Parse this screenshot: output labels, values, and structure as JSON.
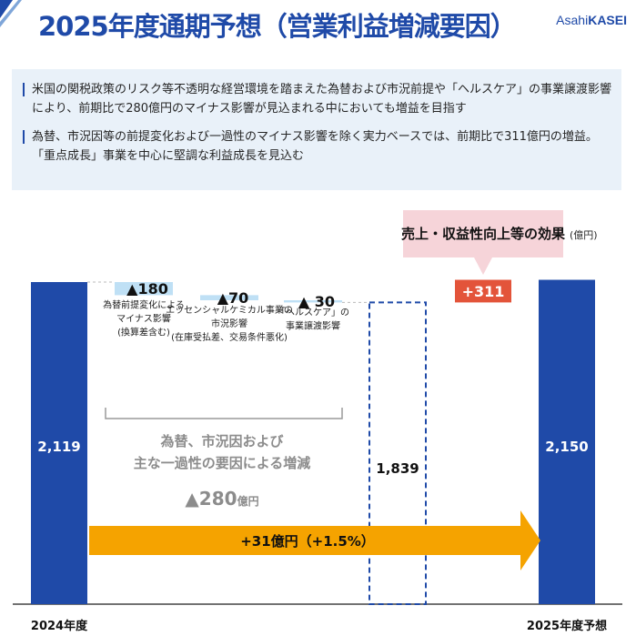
{
  "header": {
    "title": "2025年度通期予想（営業利益増減要因）",
    "logo_prefix": "Asahi",
    "logo_suffix": "KASEI"
  },
  "notes": [
    "米国の関税政策のリスク等不透明な経営環境を踏まえた為替および市況前提や「ヘルスケア」の事業譲渡影響により、前期比で280億円のマイナス影響が見込まれる中においても増益を目指す",
    "為替、市況因等の前提変化および一過性のマイナス影響を除く実力ベースでは、前期比で311億円の増益。「重点成長」事業を中心に堅調な利益成長を見込む"
  ],
  "colors": {
    "accent_blue": "#1f4aa8",
    "decrease_light_blue": "#bfe0f5",
    "increase_red": "#e3543a",
    "arrow_orange": "#f5a300",
    "callout_pink": "#f6d4d9",
    "notes_bg": "#e9f1f9"
  },
  "chart_data": {
    "type": "bar",
    "subtype": "waterfall",
    "unit": "(億円)",
    "categories": [
      "2024年度",
      "為替前提変化によるマイナス影響(換算差含む)",
      "エッセンシャルケミカル事業の市況影響(在庫受払差、交易条件悪化)",
      "「ヘルスケア」の事業譲渡影響",
      "",
      "",
      "2025年度予想"
    ],
    "bars": [
      {
        "kind": "total",
        "value": 2119,
        "label": "2,119",
        "category": "2024年度"
      },
      {
        "kind": "decrease",
        "value": -180,
        "label": "▲180",
        "desc": [
          "為替前提変化による",
          "マイナス影響",
          "(換算差含む)"
        ]
      },
      {
        "kind": "decrease",
        "value": -70,
        "label": "▲70",
        "desc": [
          "エッセンシャルケミカル事業の",
          "市況影響",
          "(在庫受払差、交易条件悪化)"
        ]
      },
      {
        "kind": "decrease",
        "value": -30,
        "label": "▲ 30",
        "desc": [
          "「ヘルスケア」の",
          "事業譲渡影響"
        ]
      },
      {
        "kind": "subtotal",
        "value": 1839,
        "label": "1,839"
      },
      {
        "kind": "increase",
        "value": 311,
        "label": "+311"
      },
      {
        "kind": "total",
        "value": 2150,
        "label": "2,150",
        "category": "2025年度予想"
      }
    ],
    "bracket": {
      "lines": [
        "為替、市況因および",
        "主な一過性の要因による増減"
      ],
      "value_label": "▲280",
      "value_unit": "億円"
    },
    "callout": "売上・収益性向上等の効果",
    "arrow_label": "+31億円（+1.5%）"
  }
}
